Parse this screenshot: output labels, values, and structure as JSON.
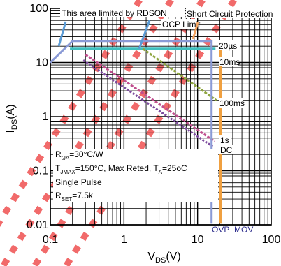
{
  "chart_data": {
    "type": "line",
    "title": "",
    "xlabel": "V",
    "xlabel_sub": "DS",
    "xlabel_unit": "(V)",
    "ylabel": "I",
    "ylabel_sub": "DS",
    "ylabel_unit": "(A)",
    "x_scale": "log",
    "y_scale": "log",
    "xlim": [
      0.1,
      100
    ],
    "ylim": [
      0.01,
      100
    ],
    "x_ticks": [
      "0.1",
      "1",
      "10",
      "100"
    ],
    "y_ticks": [
      "0.01",
      "0.1",
      "1",
      "10",
      "100"
    ],
    "grid": true,
    "series": [
      {
        "name": "20µs",
        "color": "#3fbfbf",
        "dash": "",
        "width": 3,
        "points": [
          [
            0.185,
            18
          ],
          [
            17.5,
            18
          ]
        ]
      },
      {
        "name": "10ms",
        "color": "#8fa640",
        "dash": "4,2",
        "width": 3,
        "points": [
          [
            1.8,
            18
          ],
          [
            18,
            2.0
          ]
        ]
      },
      {
        "name": "100ms",
        "color": "#8fa640",
        "dash": "",
        "width": 0,
        "points": []
      },
      {
        "name": "1s",
        "color": "#c0508f",
        "dash": "4,2",
        "width": 3,
        "points": [
          [
            0.3,
            14
          ],
          [
            17,
            0.35
          ]
        ]
      },
      {
        "name": "DC",
        "color": "#7d4b9e",
        "dash": "3,2",
        "width": 3,
        "points": [
          [
            0.28,
            11
          ],
          [
            16,
            0.28
          ]
        ]
      },
      {
        "name": "",
        "color": "#8a9ad6",
        "dash": "",
        "width": 3,
        "points": [
          [
            0.1,
            10
          ],
          [
            0.2,
            25
          ],
          [
            15.5,
            25
          ],
          [
            15.5,
            0.0105
          ]
        ]
      },
      {
        "name": "",
        "color": "#f0a040",
        "dash": "",
        "width": 3,
        "points": [
          [
            20.5,
            25
          ],
          [
            20.5,
            0.0105
          ]
        ]
      }
    ],
    "limit_labels": [
      {
        "text": "OVP",
        "color": "#2c2c8c"
      },
      {
        "text": "MOV",
        "color": "#2c2c8c"
      }
    ],
    "annotations": [
      "This area limited by RDSON",
      "Short Circuit Protection",
      "OCP Limit"
    ],
    "conditions": {
      "rtja_main": "R",
      "rtja_sub": "tJA",
      "rtja_rest": "=30°C/W",
      "tjmax_main": "T",
      "tjmax_sub": "JMAX",
      "tjmax_mid": "=150°C, Max Reted, T",
      "tjmax_sub2": "A",
      "tjmax_rest": "=25oC",
      "single_pulse": "Single Pulse",
      "rset_main": "R",
      "rset_sub": "SET",
      "rset_rest": "=7.5k"
    },
    "colors": {
      "watermark": "#f05a5a",
      "grid": "#000000",
      "annotation_arrow_blue": "#5b9bd5",
      "annotation_arrow_orange": "#f4a460"
    }
  }
}
